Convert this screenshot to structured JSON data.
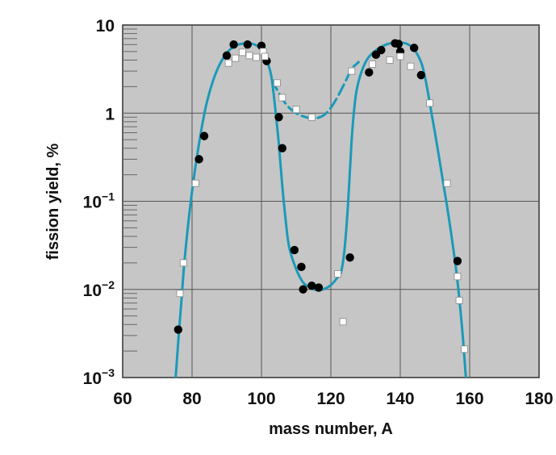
{
  "chart_data": {
    "type": "scatter",
    "title": "",
    "xlabel": "mass number, A",
    "ylabel": "fission yield, %",
    "xlim": [
      60,
      180
    ],
    "ylim": [
      0.001,
      10
    ],
    "y_scale": "log",
    "grid": true,
    "x_ticks": [
      "60",
      "80",
      "100",
      "120",
      "140",
      "160",
      "180"
    ],
    "y_ticks": [
      {
        "base": "10",
        "exp": "",
        "value": 10
      },
      {
        "base": "1",
        "exp": "",
        "value": 1
      },
      {
        "base": "10",
        "exp": "−1",
        "value": 0.1
      },
      {
        "base": "10",
        "exp": "−2",
        "value": 0.01
      },
      {
        "base": "10",
        "exp": "−3",
        "value": 0.001
      }
    ],
    "series": [
      {
        "marker": "filled-circle",
        "color": "#000000",
        "points": [
          [
            76,
            0.0035
          ],
          [
            82,
            0.3
          ],
          [
            83.5,
            0.55
          ],
          [
            90,
            4.5
          ],
          [
            92,
            6.0
          ],
          [
            96,
            6.0
          ],
          [
            100,
            5.8
          ],
          [
            101.5,
            3.9
          ],
          [
            105,
            0.9
          ],
          [
            106,
            0.4
          ],
          [
            109.5,
            0.028
          ],
          [
            111.5,
            0.018
          ],
          [
            112,
            0.01
          ],
          [
            114.5,
            0.011
          ],
          [
            116.5,
            0.0105
          ],
          [
            125.5,
            0.023
          ],
          [
            131,
            2.9
          ],
          [
            133,
            4.6
          ],
          [
            134.5,
            5.2
          ],
          [
            138.5,
            6.2
          ],
          [
            139.5,
            6.1
          ],
          [
            140,
            5.0
          ],
          [
            144,
            5.5
          ],
          [
            146,
            2.7
          ],
          [
            156.5,
            0.021
          ]
        ]
      },
      {
        "marker": "open-square",
        "color": "#ffffff",
        "points": [
          [
            76.5,
            0.009
          ],
          [
            77.5,
            0.02
          ],
          [
            81,
            0.16
          ],
          [
            90.5,
            3.7
          ],
          [
            92.5,
            4.2
          ],
          [
            94.5,
            4.9
          ],
          [
            96.5,
            4.5
          ],
          [
            98.5,
            4.3
          ],
          [
            100.5,
            5.0
          ],
          [
            101,
            4.4
          ],
          [
            104.5,
            2.2
          ],
          [
            106,
            1.5
          ],
          [
            110,
            1.1
          ],
          [
            114.5,
            0.9
          ],
          [
            122,
            0.015
          ],
          [
            123.5,
            0.0043
          ],
          [
            126,
            3.0
          ],
          [
            132,
            3.6
          ],
          [
            137,
            4.0
          ],
          [
            140,
            4.4
          ],
          [
            143,
            3.4
          ],
          [
            148.5,
            1.3
          ],
          [
            153.5,
            0.16
          ],
          [
            156.5,
            0.014
          ],
          [
            157,
            0.0075
          ],
          [
            158.5,
            0.0021
          ]
        ]
      }
    ],
    "curves": [
      {
        "style": "solid",
        "color": "#1a9ab8",
        "points": [
          [
            75,
            0.0007
          ],
          [
            76,
            0.0025
          ],
          [
            77,
            0.008
          ],
          [
            78,
            0.025
          ],
          [
            80,
            0.13
          ],
          [
            82,
            0.45
          ],
          [
            84,
            1.2
          ],
          [
            86,
            2.3
          ],
          [
            88,
            3.6
          ],
          [
            90,
            4.8
          ],
          [
            92,
            5.7
          ],
          [
            94,
            6.1
          ],
          [
            96,
            6.2
          ],
          [
            98,
            6.0
          ],
          [
            100,
            5.2
          ],
          [
            102,
            3.5
          ],
          [
            103,
            2.4
          ],
          [
            104,
            1.1
          ],
          [
            105,
            0.45
          ],
          [
            106,
            0.15
          ],
          [
            107,
            0.06
          ],
          [
            108,
            0.03
          ],
          [
            110,
            0.017
          ],
          [
            112,
            0.012
          ],
          [
            114,
            0.0105
          ],
          [
            116,
            0.0098
          ],
          [
            118,
            0.0101
          ],
          [
            120,
            0.0112
          ],
          [
            122,
            0.0138
          ],
          [
            123,
            0.016
          ],
          [
            124,
            0.03
          ],
          [
            125,
            0.1
          ],
          [
            126,
            0.5
          ],
          [
            127,
            1.4
          ],
          [
            128,
            2.3
          ],
          [
            130,
            3.8
          ],
          [
            132,
            4.8
          ],
          [
            134,
            5.5
          ],
          [
            136,
            6.0
          ],
          [
            138,
            6.3
          ],
          [
            140,
            6.3
          ],
          [
            142,
            6.1
          ],
          [
            144,
            5.3
          ],
          [
            146,
            3.8
          ],
          [
            147,
            2.7
          ],
          [
            148,
            1.7
          ],
          [
            149,
            1.0
          ],
          [
            150,
            0.6
          ],
          [
            151,
            0.35
          ],
          [
            152,
            0.2
          ],
          [
            154,
            0.065
          ],
          [
            156,
            0.018
          ],
          [
            157,
            0.008
          ],
          [
            158,
            0.003
          ],
          [
            159,
            0.0009
          ]
        ]
      },
      {
        "style": "dashed",
        "color": "#1a9ab8",
        "points": [
          [
            103,
            2.4
          ],
          [
            104,
            2.0
          ],
          [
            106,
            1.45
          ],
          [
            108,
            1.15
          ],
          [
            110,
            1.0
          ],
          [
            112,
            0.92
          ],
          [
            114,
            0.88
          ],
          [
            116,
            0.88
          ],
          [
            118,
            0.95
          ],
          [
            120,
            1.15
          ],
          [
            122,
            1.55
          ],
          [
            124,
            2.2
          ],
          [
            126,
            3.2
          ],
          [
            127,
            3.5
          ],
          [
            128,
            3.8
          ]
        ]
      }
    ]
  }
}
